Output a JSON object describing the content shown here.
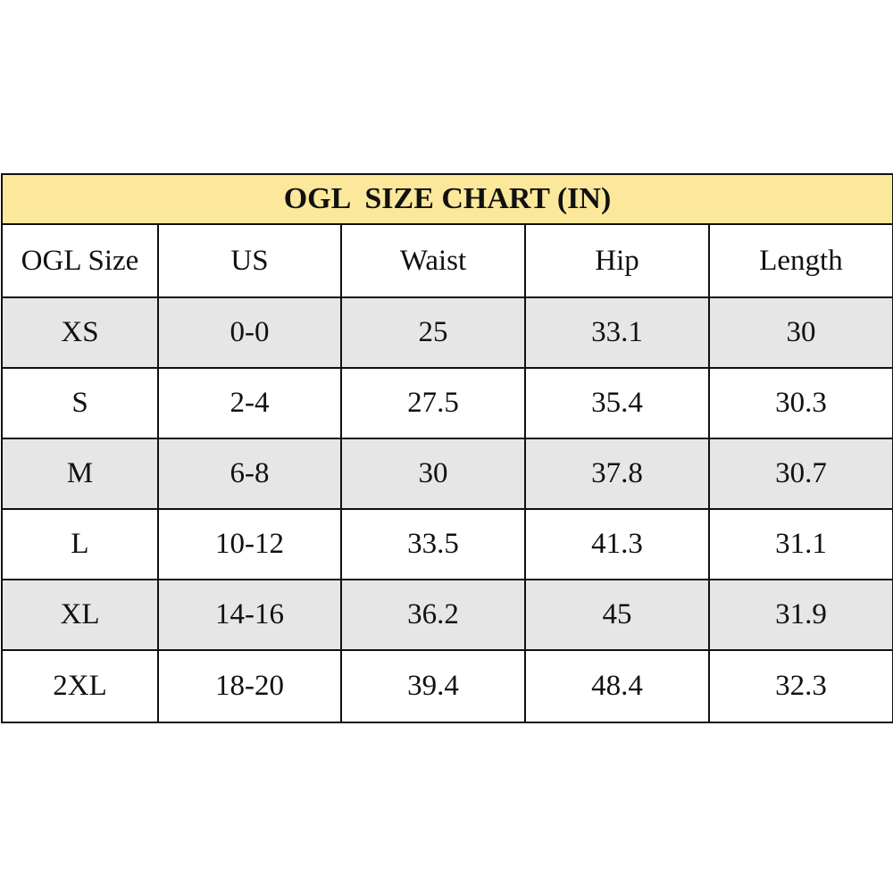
{
  "table": {
    "title": "OGL  SIZE CHART (IN)",
    "columns": [
      "OGL Size",
      "US",
      "Waist",
      "Hip",
      "Length"
    ],
    "rows": [
      [
        "XS",
        "0-0",
        "25",
        "33.1",
        "30"
      ],
      [
        "S",
        "2-4",
        "27.5",
        "35.4",
        "30.3"
      ],
      [
        "M",
        "6-8",
        "30",
        "37.8",
        "30.7"
      ],
      [
        "L",
        "10-12",
        "33.5",
        "41.3",
        "31.1"
      ],
      [
        "XL",
        "14-16",
        "36.2",
        "45",
        "31.9"
      ],
      [
        "2XL",
        "18-20",
        "39.4",
        "48.4",
        "32.3"
      ]
    ]
  }
}
